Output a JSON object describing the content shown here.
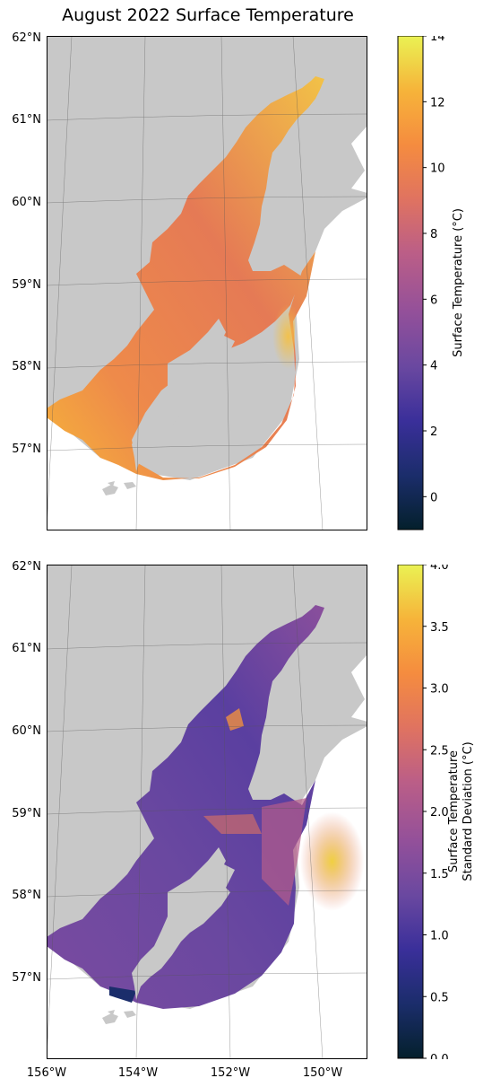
{
  "title": "August 2022 Surface Temperature",
  "chart_data": [
    {
      "type": "heatmap",
      "panel": "top",
      "variable": "Surface Temperature",
      "colorbar": {
        "label": "Surface Temperature (°C)",
        "range": [
          -1,
          14
        ],
        "ticks": [
          "0",
          "2",
          "4",
          "6",
          "8",
          "10",
          "12",
          "14"
        ],
        "tick_values": [
          0,
          2,
          4,
          6,
          8,
          10,
          12,
          14
        ]
      },
      "lat_ticks": [
        "57°N",
        "58°N",
        "59°N",
        "60°N",
        "61°N",
        "62°N"
      ],
      "lat_values": [
        57,
        58,
        59,
        60,
        61,
        62
      ],
      "extent": {
        "lon": [
          -156,
          -149
        ],
        "lat": [
          56,
          62
        ]
      },
      "notes_values": {
        "typical": 9,
        "upper_inlet": 12,
        "shelf_edge": 11
      }
    },
    {
      "type": "heatmap",
      "panel": "bottom",
      "variable": "Surface Temperature Standard Deviation",
      "colorbar": {
        "label_line1": "Surface Temperature",
        "label_line2": "Standard Deviation (°C)",
        "range": [
          0,
          4
        ],
        "ticks": [
          "0.0",
          "0.5",
          "1.0",
          "1.5",
          "2.0",
          "2.5",
          "3.0",
          "3.5",
          "4.0"
        ],
        "tick_values": [
          0,
          0.5,
          1,
          1.5,
          2,
          2.5,
          3,
          3.5,
          4
        ]
      },
      "lat_ticks": [
        "57°N",
        "58°N",
        "59°N",
        "60°N",
        "61°N",
        "62°N"
      ],
      "lat_values": [
        57,
        58,
        59,
        60,
        61,
        62
      ],
      "lon_ticks": [
        "156°W",
        "154°W",
        "152°W",
        "150°W"
      ],
      "lon_values": [
        -156,
        -154,
        -152,
        -150
      ],
      "extent": {
        "lon": [
          -156,
          -149
        ],
        "lat": [
          56,
          62
        ]
      }
    }
  ],
  "colors": {
    "land": "#c8c8c8",
    "water_default": "#ffffff",
    "colormap": [
      "#04202c",
      "#1b2d6b",
      "#3a2f9a",
      "#6a48a0",
      "#93509a",
      "#bb5e87",
      "#e07360",
      "#f58c3f",
      "#f6b43a",
      "#eaf253"
    ]
  }
}
